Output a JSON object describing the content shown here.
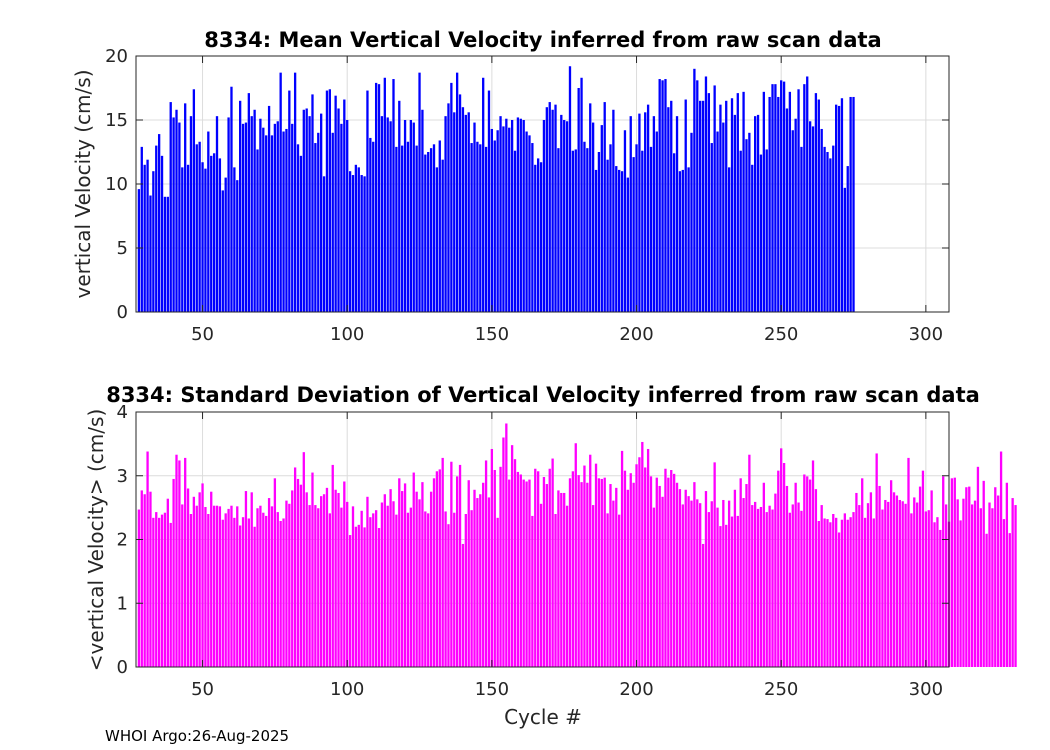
{
  "footer": "WHOI Argo:26-Aug-2025",
  "chart_data": [
    {
      "type": "bar",
      "title": "8334: Mean Vertical Velocity inferred from raw scan data",
      "xlabel": "",
      "ylabel": "vertical Velocity (cm/s)",
      "xlim": [
        27,
        308
      ],
      "ylim": [
        0,
        20
      ],
      "xticks": [
        50,
        100,
        150,
        200,
        250,
        300
      ],
      "yticks": [
        0,
        5,
        10,
        15,
        20
      ],
      "color": "#0000ff",
      "x_start": 28,
      "values": [
        9.6,
        12.9,
        11.5,
        11.9,
        9.1,
        11.0,
        13.0,
        13.9,
        12.2,
        9.0,
        9.0,
        16.4,
        15.2,
        15.8,
        14.8,
        11.3,
        16.3,
        11.5,
        15.3,
        17.4,
        13.1,
        13.3,
        11.7,
        11.2,
        14.1,
        12.2,
        12.4,
        15.3,
        12.0,
        9.5,
        10.5,
        15.2,
        17.6,
        11.3,
        10.3,
        16.5,
        14.7,
        14.8,
        17.1,
        15.3,
        15.8,
        12.7,
        15.1,
        14.4,
        13.8,
        16.1,
        13.8,
        14.7,
        14.9,
        18.7,
        14.1,
        14.3,
        17.3,
        14.7,
        18.7,
        13.1,
        12.2,
        15.8,
        15.9,
        15.3,
        17.0,
        13.2,
        14.0,
        15.5,
        10.6,
        17.3,
        17.4,
        14.0,
        16.9,
        15.9,
        14.7,
        16.6,
        15.0,
        11.0,
        10.7,
        11.5,
        11.3,
        10.7,
        10.6,
        17.3,
        13.6,
        13.3,
        17.9,
        17.8,
        15.3,
        18.3,
        15.2,
        14.9,
        18.2,
        12.9,
        16.5,
        13.0,
        15.0,
        13.3,
        15.0,
        14.8,
        13.0,
        18.7,
        15.8,
        12.3,
        12.5,
        12.8,
        13.1,
        11.3,
        13.4,
        11.9,
        15.3,
        16.3,
        17.9,
        15.6,
        18.7,
        17.0,
        16.0,
        15.4,
        15.6,
        13.2,
        14.8,
        13.3,
        13.1,
        18.3,
        12.9,
        17.3,
        14.3,
        13.4,
        14.2,
        15.3,
        14.5,
        15.1,
        14.4,
        15.0,
        12.6,
        15.2,
        15.1,
        15.0,
        14.1,
        13.8,
        13.2,
        11.5,
        12.0,
        11.7,
        15.0,
        16.0,
        16.4,
        15.8,
        16.2,
        12.8,
        15.4,
        15.0,
        14.9,
        19.2,
        12.6,
        12.7,
        17.5,
        18.3,
        13.3,
        12.8,
        16.3,
        14.8,
        11.1,
        12.5,
        14.6,
        16.4,
        11.9,
        13.1,
        15.8,
        11.4,
        11.1,
        11.0,
        14.2,
        10.5,
        15.3,
        12.1,
        13.1,
        15.5,
        12.6,
        15.6,
        16.2,
        12.9,
        15.3,
        14.1,
        18.2,
        18.1,
        18.2,
        16.0,
        16.5,
        12.4,
        15.3,
        11.0,
        11.1,
        16.6,
        11.3,
        14.0,
        19.0,
        18.1,
        16.5,
        16.5,
        18.4,
        17.1,
        13.2,
        17.7,
        14.1,
        16.2,
        14.8,
        16.5,
        11.3,
        16.7,
        15.4,
        17.1,
        12.6,
        17.2,
        13.5,
        14.0,
        11.5,
        15.3,
        15.4,
        12.3,
        17.2,
        12.7,
        16.8,
        17.8,
        17.8,
        16.8,
        18.1,
        18.0,
        15.9,
        17.2,
        14.2,
        15.1,
        17.4,
        12.9,
        17.8,
        18.4,
        14.9,
        14.5,
        17.1,
        16.6,
        14.3,
        12.9,
        12.5,
        12.0,
        13.0,
        16.2,
        16.1,
        16.7,
        9.7,
        11.4,
        16.8,
        16.8
      ]
    },
    {
      "type": "bar",
      "title": "8334: Standard Deviation of Vertical Velocity inferred from raw scan data",
      "xlabel": "Cycle #",
      "ylabel": "<vertical Velocity> (cm/s)",
      "xlim": [
        27,
        308
      ],
      "ylim": [
        0,
        4
      ],
      "xticks": [
        50,
        100,
        150,
        200,
        250,
        300
      ],
      "yticks": [
        0,
        1,
        2,
        3,
        4
      ],
      "color": "#ff00ff",
      "x_start": 28,
      "values": [
        2.47,
        2.77,
        2.71,
        3.38,
        2.75,
        2.34,
        2.43,
        2.34,
        2.39,
        2.42,
        2.64,
        2.26,
        2.95,
        3.33,
        3.24,
        2.55,
        3.28,
        2.8,
        2.4,
        2.67,
        2.53,
        2.74,
        2.88,
        2.51,
        2.4,
        2.75,
        2.53,
        2.53,
        2.52,
        2.31,
        2.41,
        2.48,
        2.53,
        2.34,
        2.52,
        2.22,
        2.35,
        2.76,
        2.33,
        2.74,
        2.2,
        2.49,
        2.53,
        2.42,
        2.37,
        2.65,
        2.52,
        2.96,
        2.43,
        2.29,
        2.33,
        2.61,
        2.56,
        2.77,
        3.13,
        2.95,
        2.86,
        3.37,
        2.74,
        2.54,
        3.05,
        2.54,
        2.49,
        2.68,
        2.71,
        2.81,
        2.41,
        3.17,
        2.78,
        2.73,
        2.5,
        2.91,
        2.59,
        2.07,
        2.52,
        2.2,
        2.23,
        2.45,
        2.19,
        2.67,
        2.35,
        2.41,
        2.46,
        2.18,
        2.58,
        2.71,
        2.53,
        2.79,
        2.6,
        2.39,
        2.96,
        2.76,
        2.88,
        2.42,
        2.5,
        3.05,
        2.75,
        2.63,
        2.9,
        2.44,
        2.41,
        2.75,
        2.96,
        3.07,
        3.1,
        3.28,
        2.44,
        2.24,
        3.22,
        2.42,
        2.99,
        3.17,
        1.93,
        2.4,
        2.93,
        2.46,
        2.78,
        2.65,
        2.71,
        2.89,
        3.24,
        2.66,
        3.42,
        3.09,
        2.34,
        3.14,
        3.6,
        3.82,
        2.94,
        3.48,
        3.26,
        3.06,
        3.02,
        2.94,
        2.91,
        2.94,
        2.37,
        3.11,
        3.07,
        2.56,
        2.98,
        2.87,
        3.11,
        3.27,
        2.4,
        2.77,
        2.73,
        2.73,
        2.53,
        2.96,
        3.07,
        3.51,
        3.01,
        2.9,
        3.16,
        2.89,
        3.33,
        2.54,
        3.19,
        2.96,
        2.95,
        2.97,
        2.41,
        2.87,
        2.61,
        2.81,
        2.39,
        3.39,
        3.08,
        2.78,
        3.04,
        2.89,
        3.18,
        3.29,
        3.53,
        3.13,
        3.42,
        2.99,
        2.5,
        2.97,
        2.84,
        2.67,
        3.11,
        2.97,
        3.09,
        3.03,
        2.89,
        2.79,
        2.55,
        2.78,
        2.68,
        2.61,
        2.9,
        2.63,
        2.57,
        1.93,
        2.76,
        2.43,
        2.6,
        3.21,
        2.5,
        2.21,
        2.62,
        2.23,
        2.61,
        2.36,
        2.78,
        2.37,
        2.96,
        2.65,
        2.87,
        3.33,
        2.54,
        2.59,
        2.48,
        2.51,
        2.89,
        2.43,
        2.53,
        2.47,
        2.72,
        3.08,
        3.43,
        3.2,
        2.84,
        2.42,
        2.55,
        2.89,
        2.58,
        2.45,
        3.02,
        2.99,
        2.94,
        3.24,
        2.79,
        2.29,
        2.54,
        2.33,
        2.32,
        2.27,
        2.4,
        2.34,
        2.11,
        2.31,
        2.41,
        2.31,
        2.35,
        2.43,
        2.73,
        2.54,
        2.96,
        2.34,
        2.57,
        2.74,
        2.33,
        3.35,
        2.84,
        2.47,
        2.62,
        2.59,
        2.93,
        2.74,
        2.69,
        2.62,
        2.6,
        2.56,
        3.28,
        2.41,
        2.66,
        2.58,
        2.83,
        3.08,
        2.44,
        2.46,
        2.77,
        2.27,
        2.35,
        2.15,
        2.99,
        2.55,
        2.28,
        2.96,
        2.97,
        2.63,
        2.3,
        2.64,
        2.82,
        2.83,
        2.55,
        2.61,
        3.14,
        2.49,
        2.92,
        2.09,
        2.58,
        2.49,
        2.82,
        2.69,
        3.38,
        2.32,
        2.89,
        2.1,
        2.65,
        2.54
      ]
    }
  ]
}
